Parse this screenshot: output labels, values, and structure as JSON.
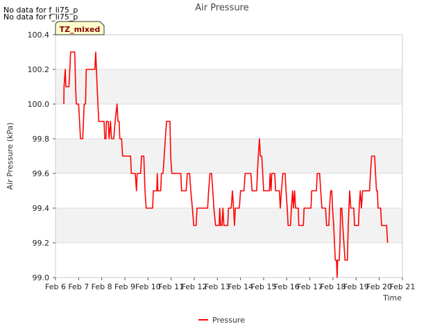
{
  "notices": [
    "No data for f_li75_p",
    "No data for f_li75_p"
  ],
  "badge": "TZ_mixed",
  "chart_data": {
    "type": "line",
    "title": "Air Pressure",
    "xlabel": "Time",
    "ylabel": "Air Pressure (kPa)",
    "xlim": [
      6,
      21
    ],
    "ylim": [
      99.0,
      100.4
    ],
    "x_ticks": [
      {
        "v": 6,
        "label": "Feb 6"
      },
      {
        "v": 7,
        "label": "Feb 7"
      },
      {
        "v": 8,
        "label": "Feb 8"
      },
      {
        "v": 9,
        "label": "Feb 9"
      },
      {
        "v": 10,
        "label": "Feb 10"
      },
      {
        "v": 11,
        "label": "Feb 11"
      },
      {
        "v": 12,
        "label": "Feb 12"
      },
      {
        "v": 13,
        "label": "Feb 13"
      },
      {
        "v": 14,
        "label": "Feb 14"
      },
      {
        "v": 15,
        "label": "Feb 15"
      },
      {
        "v": 16,
        "label": "Feb 16"
      },
      {
        "v": 17,
        "label": "Feb 17"
      },
      {
        "v": 18,
        "label": "Feb 18"
      },
      {
        "v": 19,
        "label": "Feb 19"
      },
      {
        "v": 20,
        "label": "Feb 20"
      },
      {
        "v": 21,
        "label": "Feb 21"
      }
    ],
    "y_ticks": [
      {
        "v": 99.0,
        "label": "99.0"
      },
      {
        "v": 99.2,
        "label": "99.2"
      },
      {
        "v": 99.4,
        "label": "99.4"
      },
      {
        "v": 99.6,
        "label": "99.6"
      },
      {
        "v": 99.8,
        "label": "99.8"
      },
      {
        "v": 100.0,
        "label": "100.0"
      },
      {
        "v": 100.2,
        "label": "100.2"
      },
      {
        "v": 100.4,
        "label": "100.4"
      }
    ],
    "bands": [
      [
        99.2,
        99.4
      ],
      [
        99.6,
        99.8
      ],
      [
        100.0,
        100.2
      ]
    ],
    "legend": {
      "position": "bottom-center"
    },
    "series": [
      {
        "name": "Pressure",
        "color": "#ff0000",
        "points": [
          [
            6.36,
            100.0
          ],
          [
            6.37,
            100.1
          ],
          [
            6.42,
            100.2
          ],
          [
            6.45,
            100.1
          ],
          [
            6.58,
            100.1
          ],
          [
            6.62,
            100.2
          ],
          [
            6.65,
            100.3
          ],
          [
            6.83,
            100.3
          ],
          [
            6.87,
            100.1
          ],
          [
            6.9,
            100.0
          ],
          [
            7.0,
            100.0
          ],
          [
            7.04,
            99.9
          ],
          [
            7.08,
            99.8
          ],
          [
            7.18,
            99.8
          ],
          [
            7.24,
            100.0
          ],
          [
            7.3,
            100.0
          ],
          [
            7.33,
            100.2
          ],
          [
            7.7,
            100.2
          ],
          [
            7.74,
            100.3
          ],
          [
            7.77,
            100.2
          ],
          [
            7.8,
            100.1
          ],
          [
            7.87,
            99.9
          ],
          [
            8.1,
            99.9
          ],
          [
            8.13,
            99.8
          ],
          [
            8.18,
            99.8
          ],
          [
            8.2,
            99.9
          ],
          [
            8.28,
            99.9
          ],
          [
            8.32,
            99.8
          ],
          [
            8.38,
            99.9
          ],
          [
            8.42,
            99.8
          ],
          [
            8.52,
            99.8
          ],
          [
            8.58,
            99.9
          ],
          [
            8.66,
            100.0
          ],
          [
            8.7,
            99.9
          ],
          [
            8.75,
            99.9
          ],
          [
            8.78,
            99.8
          ],
          [
            8.86,
            99.8
          ],
          [
            8.9,
            99.7
          ],
          [
            9.25,
            99.7
          ],
          [
            9.28,
            99.6
          ],
          [
            9.45,
            99.6
          ],
          [
            9.5,
            99.5
          ],
          [
            9.53,
            99.6
          ],
          [
            9.68,
            99.6
          ],
          [
            9.72,
            99.7
          ],
          [
            9.82,
            99.7
          ],
          [
            9.87,
            99.5
          ],
          [
            9.92,
            99.4
          ],
          [
            10.2,
            99.4
          ],
          [
            10.23,
            99.5
          ],
          [
            10.38,
            99.5
          ],
          [
            10.4,
            99.6
          ],
          [
            10.43,
            99.5
          ],
          [
            10.55,
            99.5
          ],
          [
            10.58,
            99.6
          ],
          [
            10.65,
            99.6
          ],
          [
            10.7,
            99.7
          ],
          [
            10.75,
            99.8
          ],
          [
            10.8,
            99.9
          ],
          [
            10.95,
            99.9
          ],
          [
            10.98,
            99.7
          ],
          [
            11.03,
            99.6
          ],
          [
            11.42,
            99.6
          ],
          [
            11.45,
            99.5
          ],
          [
            11.65,
            99.5
          ],
          [
            11.7,
            99.6
          ],
          [
            11.8,
            99.6
          ],
          [
            11.85,
            99.5
          ],
          [
            11.92,
            99.4
          ],
          [
            11.98,
            99.3
          ],
          [
            12.08,
            99.3
          ],
          [
            12.12,
            99.4
          ],
          [
            12.58,
            99.4
          ],
          [
            12.62,
            99.5
          ],
          [
            12.68,
            99.6
          ],
          [
            12.75,
            99.6
          ],
          [
            12.8,
            99.5
          ],
          [
            12.85,
            99.4
          ],
          [
            12.92,
            99.3
          ],
          [
            13.08,
            99.3
          ],
          [
            13.1,
            99.4
          ],
          [
            13.14,
            99.3
          ],
          [
            13.2,
            99.3
          ],
          [
            13.24,
            99.4
          ],
          [
            13.28,
            99.3
          ],
          [
            13.45,
            99.3
          ],
          [
            13.48,
            99.4
          ],
          [
            13.6,
            99.4
          ],
          [
            13.65,
            99.5
          ],
          [
            13.7,
            99.4
          ],
          [
            13.74,
            99.3
          ],
          [
            13.78,
            99.4
          ],
          [
            13.95,
            99.4
          ],
          [
            14.0,
            99.5
          ],
          [
            14.15,
            99.5
          ],
          [
            14.2,
            99.6
          ],
          [
            14.45,
            99.6
          ],
          [
            14.5,
            99.5
          ],
          [
            14.7,
            99.5
          ],
          [
            14.73,
            99.6
          ],
          [
            14.77,
            99.7
          ],
          [
            14.82,
            99.8
          ],
          [
            14.86,
            99.7
          ],
          [
            14.92,
            99.7
          ],
          [
            14.96,
            99.6
          ],
          [
            15.0,
            99.5
          ],
          [
            15.25,
            99.5
          ],
          [
            15.28,
            99.6
          ],
          [
            15.32,
            99.5
          ],
          [
            15.35,
            99.6
          ],
          [
            15.48,
            99.6
          ],
          [
            15.52,
            99.5
          ],
          [
            15.68,
            99.5
          ],
          [
            15.72,
            99.4
          ],
          [
            15.77,
            99.5
          ],
          [
            15.83,
            99.6
          ],
          [
            15.93,
            99.6
          ],
          [
            15.97,
            99.5
          ],
          [
            16.02,
            99.4
          ],
          [
            16.06,
            99.3
          ],
          [
            16.16,
            99.3
          ],
          [
            16.2,
            99.4
          ],
          [
            16.25,
            99.5
          ],
          [
            16.29,
            99.4
          ],
          [
            16.34,
            99.5
          ],
          [
            16.38,
            99.4
          ],
          [
            16.5,
            99.4
          ],
          [
            16.52,
            99.3
          ],
          [
            16.72,
            99.3
          ],
          [
            16.75,
            99.4
          ],
          [
            17.05,
            99.4
          ],
          [
            17.08,
            99.5
          ],
          [
            17.28,
            99.5
          ],
          [
            17.32,
            99.6
          ],
          [
            17.42,
            99.6
          ],
          [
            17.47,
            99.5
          ],
          [
            17.52,
            99.4
          ],
          [
            17.68,
            99.4
          ],
          [
            17.72,
            99.3
          ],
          [
            17.82,
            99.3
          ],
          [
            17.85,
            99.4
          ],
          [
            17.9,
            99.5
          ],
          [
            17.95,
            99.5
          ],
          [
            17.98,
            99.4
          ],
          [
            18.03,
            99.3
          ],
          [
            18.1,
            99.1
          ],
          [
            18.15,
            99.1
          ],
          [
            18.18,
            99.0
          ],
          [
            18.2,
            99.1
          ],
          [
            18.27,
            99.1
          ],
          [
            18.3,
            99.2
          ],
          [
            18.33,
            99.4
          ],
          [
            18.38,
            99.4
          ],
          [
            18.42,
            99.3
          ],
          [
            18.47,
            99.2
          ],
          [
            18.52,
            99.1
          ],
          [
            18.62,
            99.1
          ],
          [
            18.66,
            99.3
          ],
          [
            18.72,
            99.5
          ],
          [
            18.77,
            99.4
          ],
          [
            18.9,
            99.4
          ],
          [
            18.93,
            99.3
          ],
          [
            19.1,
            99.3
          ],
          [
            19.13,
            99.4
          ],
          [
            19.18,
            99.5
          ],
          [
            19.23,
            99.4
          ],
          [
            19.28,
            99.5
          ],
          [
            19.58,
            99.5
          ],
          [
            19.62,
            99.6
          ],
          [
            19.67,
            99.7
          ],
          [
            19.8,
            99.7
          ],
          [
            19.84,
            99.6
          ],
          [
            19.88,
            99.5
          ],
          [
            19.92,
            99.5
          ],
          [
            19.95,
            99.4
          ],
          [
            20.06,
            99.4
          ],
          [
            20.1,
            99.3
          ],
          [
            20.32,
            99.3
          ],
          [
            20.36,
            99.2
          ]
        ]
      }
    ]
  }
}
